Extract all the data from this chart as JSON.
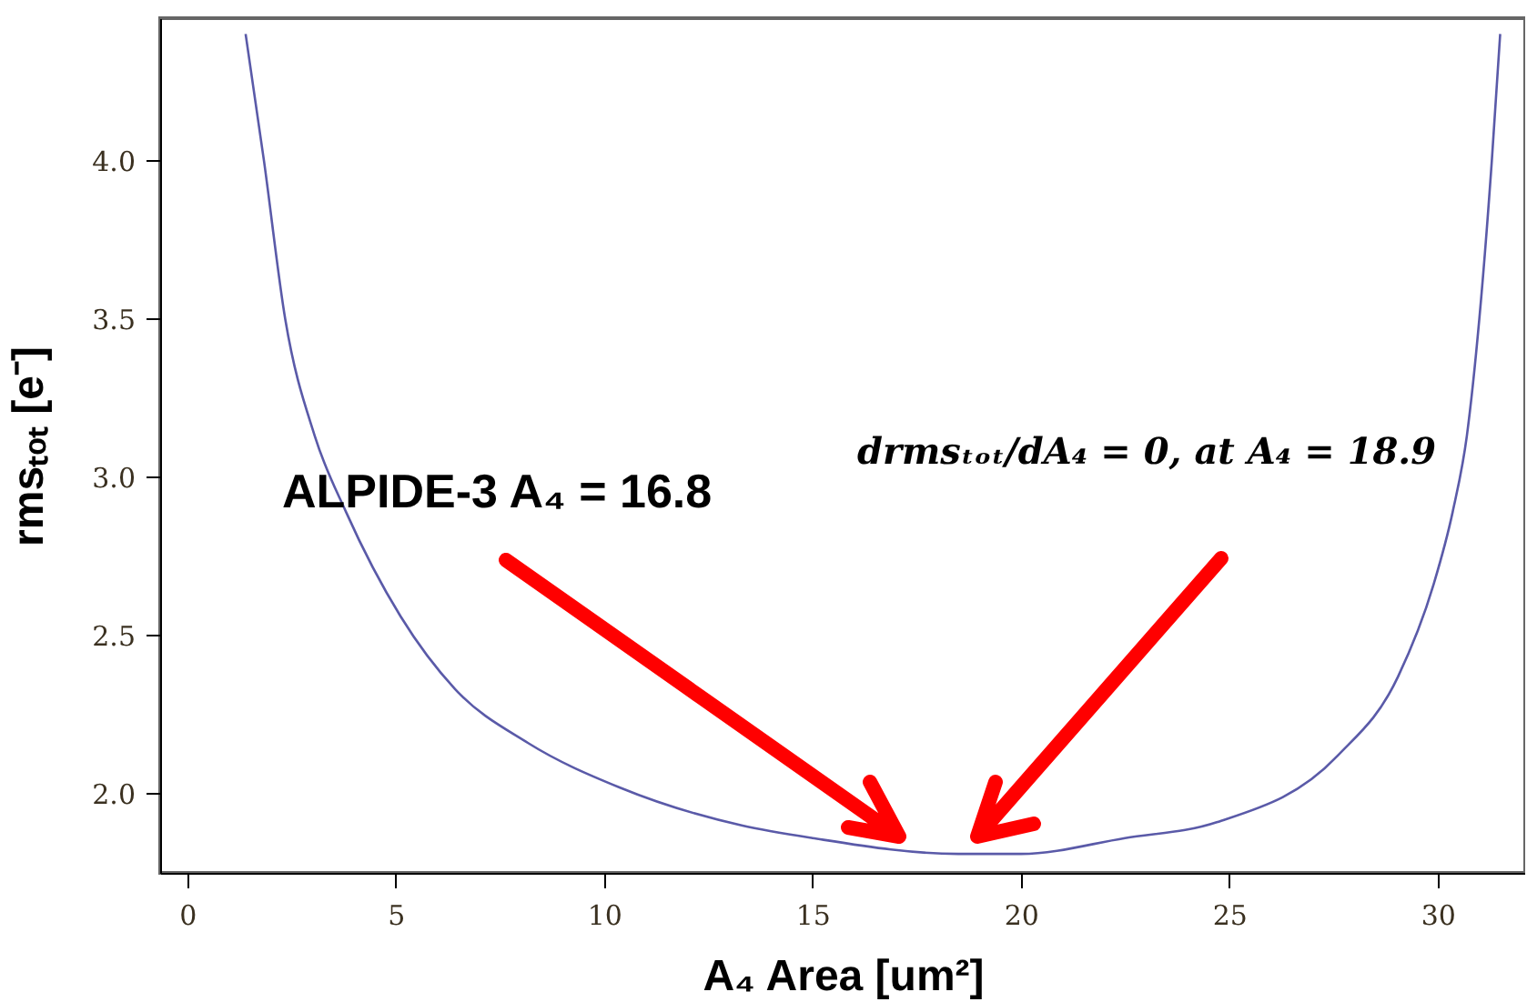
{
  "chart_data": {
    "type": "line",
    "xlabel": "A₄ Area [um²]",
    "ylabel": "rmsₜₒₜ  [e⁻]",
    "x": [
      1.4,
      1.84,
      2.35,
      3.06,
      3.81,
      5.12,
      6.43,
      8.18,
      10.37,
      13.3,
      15,
      18.5,
      20,
      22.5,
      24.7,
      27.6,
      29.05,
      29.9,
      30.36,
      30.7,
      31.0,
      31.3,
      31.5
    ],
    "series": [
      {
        "color": "#5a5aa8",
        "values": [
          4.4,
          4.0,
          3.5,
          3.13,
          2.89,
          2.56,
          2.33,
          2.16,
          2.02,
          1.9,
          1.86,
          1.81,
          1.81,
          1.86,
          1.91,
          2.12,
          2.37,
          2.66,
          2.89,
          3.13,
          3.5,
          4.0,
          4.4
        ]
      }
    ],
    "xlim": [
      -0.65,
      32.1
    ],
    "ylim": [
      1.75,
      4.45
    ],
    "xticks": [
      0,
      5,
      10,
      15,
      20,
      25,
      30
    ],
    "yticks": [
      {
        "value": 2,
        "label": "2.0"
      },
      2.5,
      {
        "value": 3,
        "label": "3.0"
      },
      3.5,
      {
        "value": 4,
        "label": "4.0"
      }
    ],
    "annotations": [
      "ALPIDE-3 A₄ = 16.8",
      "drmsₜₒₜ/dA₄ = 0, at A₄ = 18.9"
    ]
  }
}
